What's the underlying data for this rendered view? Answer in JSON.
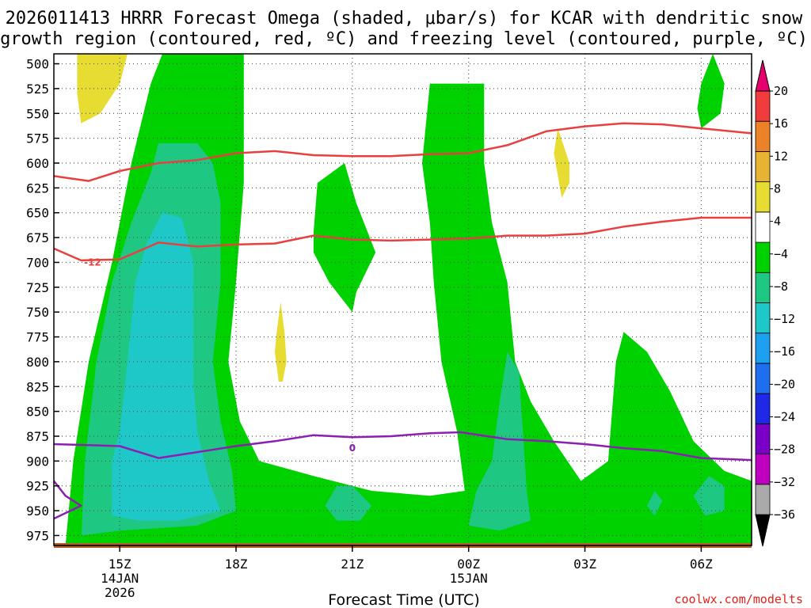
{
  "chart_data": {
    "type": "heatmap",
    "title_line1": "2026011413 HRRR Forecast Omega (shaded, μbar/s) for KCAR with dendritic snow",
    "title_line2": "growth region (contoured, red, ºC) and freezing level (contoured, purple, ºC)",
    "xlabel": "Forecast Time (UTC)",
    "credit": "coolwx.com/modelts",
    "pressure_range": [
      490,
      985
    ],
    "pressure_ticks": [
      500,
      525,
      550,
      575,
      600,
      625,
      650,
      675,
      700,
      725,
      750,
      775,
      800,
      825,
      850,
      875,
      900,
      925,
      950,
      975
    ],
    "time_range_hours": [
      13.3,
      31.3
    ],
    "time_ticks": [
      {
        "hour": 15,
        "label": "15Z",
        "sub1": "14JAN",
        "sub2": "2026"
      },
      {
        "hour": 18,
        "label": "18Z",
        "sub1": "",
        "sub2": ""
      },
      {
        "hour": 21,
        "label": "21Z",
        "sub1": "",
        "sub2": ""
      },
      {
        "hour": 24,
        "label": "00Z",
        "sub1": "15JAN",
        "sub2": ""
      },
      {
        "hour": 27,
        "label": "03Z",
        "sub1": "",
        "sub2": ""
      },
      {
        "hour": 30,
        "label": "06Z",
        "sub1": "",
        "sub2": ""
      }
    ],
    "colorbar": {
      "labels": [
        "20",
        "16",
        "12",
        "8",
        "4",
        "−4",
        "−8",
        "−12",
        "−16",
        "−20",
        "−24",
        "−28",
        "−32",
        "−36"
      ],
      "bins": [
        {
          "color": "#e8e8e8",
          "from": -100,
          "to": -36
        },
        {
          "color": "#aaaaaa",
          "from": -36,
          "to": -32
        },
        {
          "color": "#c000c0",
          "from": -32,
          "to": -28
        },
        {
          "color": "#7a00c8",
          "from": -28,
          "to": -24
        },
        {
          "color": "#1e28e6",
          "from": -24,
          "to": -20
        },
        {
          "color": "#1e6ef0",
          "from": -20,
          "to": -16
        },
        {
          "color": "#1ea0f0",
          "from": -16,
          "to": -12
        },
        {
          "color": "#1ec8c8",
          "from": -12,
          "to": -8
        },
        {
          "color": "#1ec882",
          "from": -8,
          "to": -4
        },
        {
          "color": "#00d200",
          "from": -4,
          "to": 4
        },
        {
          "color": "#ffffff",
          "from": 4,
          "to": 8
        },
        {
          "color": "#e6dc32",
          "from": 8,
          "to": 12
        },
        {
          "color": "#e6b432",
          "from": 12,
          "to": 16
        },
        {
          "color": "#eb8228",
          "from": 16,
          "to": 20
        },
        {
          "color": "#f03c3c",
          "from": 20,
          "to": 24
        },
        {
          "color": "#e6006e",
          "from": 24,
          "to": 100
        }
      ]
    },
    "shaded_regions": [
      {
        "name": "omega-green-band-1",
        "level": "-4",
        "color": "#00d200",
        "points": [
          [
            13.6,
            985
          ],
          [
            13.8,
            900
          ],
          [
            14.2,
            800
          ],
          [
            14.8,
            700
          ],
          [
            15.3,
            600
          ],
          [
            15.8,
            520
          ],
          [
            16.1,
            490
          ],
          [
            18.2,
            490
          ],
          [
            18.2,
            620
          ],
          [
            18.0,
            720
          ],
          [
            17.8,
            800
          ],
          [
            18.1,
            860
          ],
          [
            18.6,
            900
          ],
          [
            20.0,
            915
          ],
          [
            21.5,
            930
          ],
          [
            23.0,
            935
          ],
          [
            23.9,
            930
          ],
          [
            23.7,
            870
          ],
          [
            23.3,
            800
          ],
          [
            23.1,
            720
          ],
          [
            23.0,
            660
          ],
          [
            22.8,
            600
          ],
          [
            22.9,
            560
          ],
          [
            23.0,
            520
          ],
          [
            24.4,
            520
          ],
          [
            24.4,
            600
          ],
          [
            24.6,
            660
          ],
          [
            25.0,
            720
          ],
          [
            25.2,
            800
          ],
          [
            25.6,
            840
          ],
          [
            26.2,
            880
          ],
          [
            26.9,
            920
          ],
          [
            27.6,
            900
          ],
          [
            27.8,
            800
          ],
          [
            28.0,
            770
          ],
          [
            28.6,
            790
          ],
          [
            29.2,
            830
          ],
          [
            29.8,
            880
          ],
          [
            30.6,
            910
          ],
          [
            31.3,
            920
          ],
          [
            31.3,
            985
          ]
        ]
      },
      {
        "name": "omega-green-band-2",
        "level": "-4",
        "color": "#00d200",
        "points": [
          [
            20.0,
            670
          ],
          [
            20.1,
            620
          ],
          [
            20.8,
            600
          ],
          [
            21.1,
            640
          ],
          [
            21.6,
            690
          ],
          [
            21.1,
            730
          ],
          [
            21.0,
            750
          ],
          [
            20.4,
            720
          ],
          [
            20.0,
            690
          ]
        ]
      },
      {
        "name": "omega-green-band-3",
        "level": "-4",
        "color": "#00d200",
        "points": [
          [
            30.0,
            520
          ],
          [
            30.3,
            490
          ],
          [
            30.6,
            520
          ],
          [
            30.5,
            550
          ],
          [
            30.0,
            565
          ],
          [
            29.9,
            545
          ]
        ]
      },
      {
        "name": "omega-teal-band-1",
        "level": "-8",
        "color": "#1ec882",
        "points": [
          [
            14.0,
            985
          ],
          [
            14.1,
            900
          ],
          [
            14.4,
            800
          ],
          [
            14.8,
            720
          ],
          [
            15.3,
            660
          ],
          [
            15.8,
            610
          ],
          [
            16.0,
            580
          ],
          [
            17.0,
            580
          ],
          [
            17.4,
            600
          ],
          [
            17.6,
            640
          ],
          [
            17.6,
            720
          ],
          [
            17.4,
            800
          ],
          [
            17.6,
            860
          ],
          [
            17.9,
            910
          ],
          [
            18.0,
            950
          ],
          [
            17.0,
            965
          ],
          [
            15.0,
            970
          ],
          [
            14.0,
            975
          ]
        ]
      },
      {
        "name": "omega-teal-band-2",
        "level": "-8",
        "color": "#1ec882",
        "points": [
          [
            20.3,
            945
          ],
          [
            20.6,
            925
          ],
          [
            21.0,
            925
          ],
          [
            21.5,
            945
          ],
          [
            21.2,
            960
          ],
          [
            20.6,
            960
          ]
        ]
      },
      {
        "name": "omega-teal-band-3",
        "level": "-8",
        "color": "#1ec882",
        "points": [
          [
            24.0,
            965
          ],
          [
            24.2,
            930
          ],
          [
            24.6,
            900
          ],
          [
            24.8,
            840
          ],
          [
            25.0,
            790
          ],
          [
            25.3,
            810
          ],
          [
            25.4,
            870
          ],
          [
            25.5,
            930
          ],
          [
            25.6,
            960
          ],
          [
            24.8,
            970
          ]
        ]
      },
      {
        "name": "omega-teal-band-4",
        "level": "-8",
        "color": "#1ec882",
        "points": [
          [
            28.6,
            945
          ],
          [
            28.8,
            930
          ],
          [
            29.0,
            940
          ],
          [
            28.8,
            955
          ]
        ]
      },
      {
        "name": "omega-teal-band-5",
        "level": "-8",
        "color": "#1ec882",
        "points": [
          [
            29.8,
            935
          ],
          [
            30.2,
            915
          ],
          [
            30.6,
            925
          ],
          [
            30.6,
            950
          ],
          [
            30.1,
            955
          ]
        ]
      },
      {
        "name": "omega-cyan-band-1",
        "level": "-12",
        "color": "#1ec8c8",
        "points": [
          [
            14.8,
            955
          ],
          [
            14.8,
            900
          ],
          [
            15.0,
            870
          ],
          [
            15.2,
            800
          ],
          [
            15.4,
            720
          ],
          [
            15.7,
            680
          ],
          [
            16.1,
            650
          ],
          [
            16.6,
            655
          ],
          [
            16.9,
            700
          ],
          [
            16.9,
            760
          ],
          [
            16.9,
            820
          ],
          [
            17.0,
            870
          ],
          [
            17.3,
            920
          ],
          [
            17.6,
            950
          ],
          [
            16.5,
            960
          ],
          [
            15.5,
            960
          ]
        ]
      },
      {
        "name": "omega-yellow-1",
        "level": "4",
        "color": "#e6dc32",
        "points": [
          [
            13.9,
            490
          ],
          [
            15.2,
            490
          ],
          [
            15.0,
            520
          ],
          [
            14.5,
            550
          ],
          [
            14.0,
            560
          ],
          [
            13.9,
            530
          ]
        ]
      },
      {
        "name": "omega-yellow-2",
        "level": "4",
        "color": "#e6dc32",
        "points": [
          [
            19.0,
            790
          ],
          [
            19.05,
            770
          ],
          [
            19.15,
            740
          ],
          [
            19.25,
            770
          ],
          [
            19.3,
            800
          ],
          [
            19.2,
            820
          ],
          [
            19.1,
            820
          ]
        ]
      },
      {
        "name": "omega-yellow-3",
        "level": "4",
        "color": "#e6dc32",
        "points": [
          [
            26.2,
            590
          ],
          [
            26.3,
            565
          ],
          [
            26.6,
            600
          ],
          [
            26.6,
            620
          ],
          [
            26.4,
            635
          ]
        ]
      }
    ],
    "contour_lines": [
      {
        "name": "isotherm-minus-12-upper",
        "value": -12,
        "color": "#e84040",
        "label": "",
        "points": [
          [
            13.3,
            613
          ],
          [
            14.2,
            618
          ],
          [
            15.0,
            608
          ],
          [
            16.0,
            600
          ],
          [
            17.0,
            597
          ],
          [
            18.0,
            590
          ],
          [
            19.0,
            588
          ],
          [
            20.0,
            592
          ],
          [
            21.0,
            593
          ],
          [
            22.0,
            593
          ],
          [
            23.0,
            591
          ],
          [
            24.0,
            590
          ],
          [
            25.0,
            582
          ],
          [
            26.0,
            568
          ],
          [
            27.0,
            563
          ],
          [
            28.0,
            560
          ],
          [
            29.0,
            561
          ],
          [
            30.0,
            565
          ],
          [
            31.3,
            570
          ]
        ]
      },
      {
        "name": "isotherm-minus-12-lower",
        "value": -12,
        "color": "#e84040",
        "label": "-12",
        "label_at": [
          14.3,
          700
        ],
        "points": [
          [
            13.3,
            686
          ],
          [
            14.0,
            698
          ],
          [
            15.0,
            697
          ],
          [
            16.0,
            680
          ],
          [
            17.0,
            684
          ],
          [
            18.0,
            682
          ],
          [
            19.0,
            681
          ],
          [
            20.0,
            673
          ],
          [
            21.0,
            677
          ],
          [
            22.0,
            678
          ],
          [
            23.0,
            677
          ],
          [
            24.0,
            676
          ],
          [
            25.0,
            673
          ],
          [
            26.0,
            673
          ],
          [
            27.0,
            671
          ],
          [
            28.0,
            664
          ],
          [
            29.0,
            659
          ],
          [
            30.0,
            655
          ],
          [
            31.3,
            655
          ]
        ]
      },
      {
        "name": "freezing-level-0",
        "value": 0,
        "color": "#8c1eb4",
        "label": "0",
        "label_at": [
          21.0,
          887
        ],
        "points": [
          [
            13.3,
            883
          ],
          [
            15.0,
            885
          ],
          [
            16.0,
            897
          ],
          [
            17.0,
            891
          ],
          [
            18.0,
            885
          ],
          [
            19.0,
            880
          ],
          [
            20.0,
            874
          ],
          [
            21.0,
            876
          ],
          [
            22.0,
            875
          ],
          [
            23.0,
            872
          ],
          [
            23.8,
            871
          ],
          [
            25.0,
            878
          ],
          [
            26.0,
            880
          ],
          [
            27.0,
            883
          ],
          [
            28.0,
            887
          ],
          [
            29.0,
            890
          ],
          [
            30.0,
            897
          ],
          [
            31.3,
            899
          ]
        ]
      },
      {
        "name": "freezing-level-0-lower",
        "value": 0,
        "color": "#8c1eb4",
        "label": "",
        "points": [
          [
            13.3,
            920
          ],
          [
            13.6,
            935
          ],
          [
            14.0,
            945
          ],
          [
            13.3,
            958
          ]
        ]
      }
    ]
  }
}
